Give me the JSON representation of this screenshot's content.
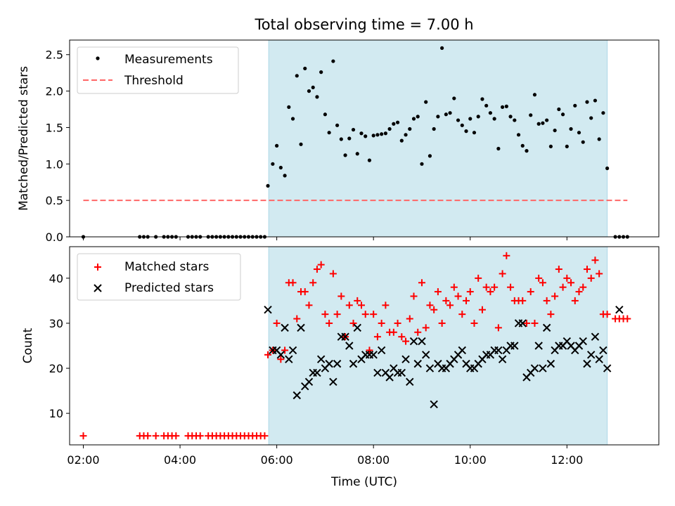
{
  "title": "Total observing time = 7.00 h",
  "colors": {
    "span": "#add8e6",
    "measurement": "#000000",
    "threshold": "#ff6666",
    "matched": "#ff0000",
    "predicted": "#000000"
  },
  "chart_data": [
    {
      "type": "scatter",
      "panel": "top",
      "ylabel": "Matched/Predicted stars",
      "xlabel": "",
      "ylim": [
        0,
        2.7
      ],
      "xlim": [
        "01:43",
        "13:54"
      ],
      "yticks": [
        "0.0",
        "0.5",
        "1.0",
        "1.5",
        "2.0",
        "2.5"
      ],
      "shaded_span": [
        "05:50",
        "12:50"
      ],
      "legend_position": "upper left",
      "series": [
        {
          "name": "Measurements",
          "x": [
            "02:00",
            "03:10",
            "03:15",
            "03:20",
            "03:30",
            "03:40",
            "03:45",
            "03:50",
            "03:55",
            "04:10",
            "04:15",
            "04:20",
            "04:25",
            "04:35",
            "04:40",
            "04:45",
            "04:50",
            "04:55",
            "05:00",
            "05:05",
            "05:10",
            "05:15",
            "05:20",
            "05:25",
            "05:30",
            "05:35",
            "05:40",
            "05:45",
            "05:49",
            "05:55",
            "06:00",
            "06:05",
            "06:10",
            "06:15",
            "06:20",
            "06:25",
            "06:30",
            "06:35",
            "06:40",
            "06:45",
            "06:50",
            "06:55",
            "07:00",
            "07:05",
            "07:10",
            "07:15",
            "07:20",
            "07:25",
            "07:30",
            "07:35",
            "07:40",
            "07:45",
            "07:50",
            "07:55",
            "08:00",
            "08:05",
            "08:10",
            "08:15",
            "08:20",
            "08:25",
            "08:30",
            "08:35",
            "08:40",
            "08:45",
            "08:50",
            "08:55",
            "09:00",
            "09:05",
            "09:10",
            "09:15",
            "09:20",
            "09:25",
            "09:30",
            "09:35",
            "09:40",
            "09:45",
            "09:50",
            "09:55",
            "10:00",
            "10:05",
            "10:10",
            "10:15",
            "10:20",
            "10:25",
            "10:30",
            "10:35",
            "10:40",
            "10:45",
            "10:50",
            "10:55",
            "11:00",
            "11:05",
            "11:10",
            "11:15",
            "11:20",
            "11:25",
            "11:30",
            "11:35",
            "11:40",
            "11:45",
            "11:50",
            "11:55",
            "12:00",
            "12:05",
            "12:10",
            "12:15",
            "12:20",
            "12:25",
            "12:30",
            "12:35",
            "12:40",
            "12:45",
            "12:50",
            "13:00",
            "13:05",
            "13:10",
            "13:15"
          ],
          "y": [
            0,
            0,
            0,
            0,
            0,
            0,
            0,
            0,
            0,
            0,
            0,
            0,
            0,
            0,
            0,
            0,
            0,
            0,
            0,
            0,
            0,
            0,
            0,
            0,
            0,
            0,
            0,
            0,
            0.7,
            1.0,
            1.25,
            0.95,
            0.84,
            1.78,
            1.62,
            2.21,
            1.27,
            2.31,
            2.0,
            2.05,
            1.92,
            2.26,
            1.68,
            1.43,
            2.41,
            1.53,
            1.34,
            1.12,
            1.35,
            1.47,
            1.14,
            1.42,
            1.38,
            1.05,
            1.39,
            1.4,
            1.41,
            1.42,
            1.48,
            1.55,
            1.57,
            1.32,
            1.4,
            1.48,
            1.62,
            1.65,
            1.0,
            1.85,
            1.11,
            1.48,
            1.65,
            2.59,
            1.68,
            1.7,
            1.9,
            1.6,
            1.53,
            1.45,
            1.62,
            1.43,
            1.65,
            1.89,
            1.8,
            1.7,
            1.62,
            1.21,
            1.78,
            1.79,
            1.65,
            1.6,
            1.4,
            1.25,
            1.18,
            1.67,
            1.95,
            1.55,
            1.56,
            1.6,
            1.24,
            1.46,
            1.75,
            1.68,
            1.24,
            1.48,
            1.8,
            1.43,
            1.3,
            1.85,
            1.63,
            1.87,
            1.34,
            1.7,
            0.94,
            0,
            0,
            0,
            0
          ]
        },
        {
          "name": "Threshold",
          "x": [
            "02:00",
            "13:15"
          ],
          "y": [
            0.5,
            0.5
          ]
        }
      ]
    },
    {
      "type": "scatter",
      "panel": "bottom",
      "ylabel": "Count",
      "xlabel": "Time (UTC)",
      "ylim": [
        3.0,
        47.0
      ],
      "xlim": [
        "01:43",
        "13:54"
      ],
      "yticks": [
        "10",
        "20",
        "30",
        "40"
      ],
      "xticks": [
        "02:00",
        "04:00",
        "06:00",
        "08:00",
        "10:00",
        "12:00"
      ],
      "shaded_span": [
        "05:50",
        "12:50"
      ],
      "legend_position": "upper left",
      "series": [
        {
          "name": "Matched stars",
          "x": [
            "02:00",
            "03:10",
            "03:15",
            "03:20",
            "03:30",
            "03:40",
            "03:45",
            "03:50",
            "03:55",
            "04:10",
            "04:15",
            "04:20",
            "04:25",
            "04:35",
            "04:40",
            "04:45",
            "04:50",
            "04:55",
            "05:00",
            "05:05",
            "05:10",
            "05:15",
            "05:20",
            "05:25",
            "05:30",
            "05:35",
            "05:40",
            "05:45",
            "05:49",
            "05:55",
            "06:00",
            "06:05",
            "06:10",
            "06:15",
            "06:20",
            "06:25",
            "06:30",
            "06:35",
            "06:40",
            "06:45",
            "06:50",
            "06:55",
            "07:00",
            "07:05",
            "07:10",
            "07:15",
            "07:20",
            "07:25",
            "07:30",
            "07:35",
            "07:40",
            "07:45",
            "07:50",
            "07:55",
            "08:00",
            "08:05",
            "08:10",
            "08:15",
            "08:20",
            "08:25",
            "08:30",
            "08:35",
            "08:40",
            "08:45",
            "08:50",
            "08:55",
            "09:00",
            "09:05",
            "09:10",
            "09:15",
            "09:20",
            "09:25",
            "09:30",
            "09:35",
            "09:40",
            "09:45",
            "09:50",
            "09:55",
            "10:00",
            "10:05",
            "10:10",
            "10:15",
            "10:20",
            "10:25",
            "10:30",
            "10:35",
            "10:40",
            "10:45",
            "10:50",
            "10:55",
            "11:00",
            "11:05",
            "11:10",
            "11:15",
            "11:20",
            "11:25",
            "11:30",
            "11:35",
            "11:40",
            "11:45",
            "11:50",
            "11:55",
            "12:00",
            "12:05",
            "12:10",
            "12:15",
            "12:20",
            "12:25",
            "12:30",
            "12:35",
            "12:40",
            "12:45",
            "12:50",
            "13:00",
            "13:05",
            "13:10",
            "13:15"
          ],
          "y": [
            5,
            5,
            5,
            5,
            5,
            5,
            5,
            5,
            5,
            5,
            5,
            5,
            5,
            5,
            5,
            5,
            5,
            5,
            5,
            5,
            5,
            5,
            5,
            5,
            5,
            5,
            5,
            5,
            23,
            24,
            30,
            22,
            24,
            39,
            39,
            31,
            37,
            37,
            34,
            39,
            42,
            43,
            32,
            30,
            41,
            32,
            36,
            27,
            34,
            30,
            35,
            34,
            32,
            24,
            32,
            27,
            30,
            34,
            28,
            28,
            30,
            27,
            26,
            31,
            36,
            28,
            39,
            29,
            34,
            33,
            37,
            30,
            35,
            34,
            38,
            36,
            32,
            35,
            37,
            30,
            40,
            33,
            38,
            37,
            38,
            29,
            41,
            45,
            38,
            35,
            35,
            35,
            30,
            37,
            30,
            40,
            39,
            35,
            32,
            36,
            42,
            38,
            40,
            39,
            35,
            37,
            38,
            42,
            40,
            44,
            41,
            32,
            32,
            31,
            31,
            31,
            31
          ]
        },
        {
          "name": "Predicted stars",
          "x": [
            "05:49",
            "05:55",
            "06:00",
            "06:05",
            "06:10",
            "06:15",
            "06:20",
            "06:25",
            "06:30",
            "06:35",
            "06:40",
            "06:45",
            "06:50",
            "06:55",
            "07:00",
            "07:05",
            "07:10",
            "07:15",
            "07:20",
            "07:25",
            "07:30",
            "07:35",
            "07:40",
            "07:45",
            "07:50",
            "07:55",
            "08:00",
            "08:05",
            "08:10",
            "08:15",
            "08:20",
            "08:25",
            "08:30",
            "08:35",
            "08:40",
            "08:45",
            "08:50",
            "08:55",
            "09:00",
            "09:05",
            "09:10",
            "09:15",
            "09:20",
            "09:25",
            "09:30",
            "09:35",
            "09:40",
            "09:45",
            "09:50",
            "09:55",
            "10:00",
            "10:05",
            "10:10",
            "10:15",
            "10:20",
            "10:25",
            "10:30",
            "10:35",
            "10:40",
            "10:45",
            "10:50",
            "10:55",
            "11:00",
            "11:05",
            "11:10",
            "11:15",
            "11:20",
            "11:25",
            "11:30",
            "11:35",
            "11:40",
            "11:45",
            "11:50",
            "11:55",
            "12:00",
            "12:05",
            "12:10",
            "12:15",
            "12:20",
            "12:25",
            "12:30",
            "12:35",
            "12:40",
            "12:45",
            "12:50",
            "13:05"
          ],
          "y": [
            33,
            24,
            24,
            23,
            29,
            22,
            24,
            14,
            29,
            16,
            17,
            19,
            19,
            22,
            20,
            21,
            17,
            21,
            27,
            27,
            25,
            21,
            29,
            22,
            23,
            23,
            23,
            19,
            24,
            19,
            18,
            20,
            19,
            19,
            22,
            17,
            26,
            21,
            26,
            23,
            20,
            12,
            21,
            20,
            20,
            21,
            22,
            23,
            24,
            21,
            20,
            20,
            21,
            22,
            23,
            23,
            24,
            24,
            22,
            24,
            25,
            25,
            30,
            30,
            18,
            19,
            20,
            25,
            20,
            29,
            21,
            24,
            25,
            25,
            26,
            25,
            24,
            25,
            26,
            21,
            23,
            27,
            22,
            24,
            20,
            33
          ]
        }
      ]
    }
  ]
}
